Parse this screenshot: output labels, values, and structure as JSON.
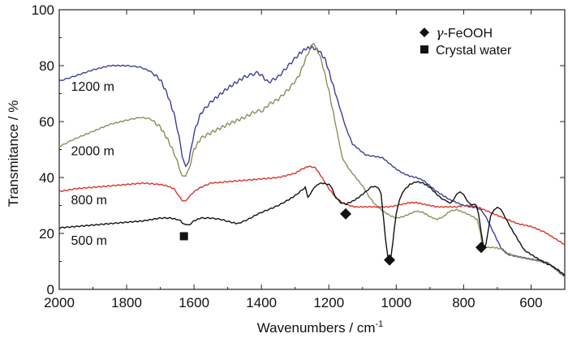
{
  "chart_data": {
    "type": "line",
    "title": "",
    "xlabel": "Wavenumbers / cm",
    "xlabel_superscript": "-1",
    "ylabel": "Transmitance / %",
    "xlim": [
      2000,
      500
    ],
    "ylim": [
      0,
      100
    ],
    "x_reversed": true,
    "x_ticks": [
      2000,
      1800,
      1600,
      1400,
      1200,
      1000,
      800,
      600
    ],
    "y_ticks": [
      0,
      20,
      40,
      60,
      80,
      100
    ],
    "grid": false,
    "legend_position": "top-right",
    "legend": [
      {
        "label": "γ-FeOOH",
        "marker": "diamond"
      },
      {
        "label": "Crystal water",
        "marker": "square"
      }
    ],
    "series": [
      {
        "name": "1200 m",
        "color": "#3b3f9a",
        "x": [
          2000,
          1960,
          1900,
          1850,
          1800,
          1760,
          1730,
          1700,
          1680,
          1660,
          1645,
          1635,
          1625,
          1615,
          1600,
          1580,
          1550,
          1500,
          1450,
          1410,
          1395,
          1380,
          1350,
          1320,
          1290,
          1270,
          1250,
          1230,
          1210,
          1190,
          1170,
          1150,
          1130,
          1110,
          1090,
          1060,
          1040,
          1020,
          1000,
          980,
          960,
          940,
          920,
          900,
          880,
          860,
          840,
          820,
          800,
          780,
          760,
          745,
          730,
          710,
          690,
          670,
          650,
          630,
          610,
          590,
          570,
          560,
          550,
          540,
          525,
          510,
          500
        ],
        "y": [
          74.5,
          76,
          78.5,
          80,
          80,
          79.5,
          78,
          75,
          70,
          63,
          55,
          47,
          44.5,
          46,
          56,
          63,
          67,
          72,
          76,
          77.5,
          76,
          74,
          76,
          80,
          84,
          86,
          86.5,
          85.5,
          82,
          74,
          66,
          58,
          52,
          50,
          48,
          47.5,
          47,
          45,
          43,
          41.5,
          40.5,
          40,
          39,
          37,
          35,
          33.5,
          32,
          31,
          30,
          29.5,
          29.2,
          28,
          25,
          20,
          15,
          12.5,
          12,
          11.5,
          11,
          10.6,
          10.2,
          9.8,
          9.5,
          8.5,
          7,
          5.5,
          4.5
        ]
      },
      {
        "name": "2000 m",
        "color": "#8c8e58",
        "x": [
          2000,
          1960,
          1900,
          1850,
          1800,
          1760,
          1730,
          1700,
          1680,
          1660,
          1645,
          1635,
          1625,
          1615,
          1600,
          1580,
          1550,
          1500,
          1450,
          1420,
          1395,
          1380,
          1350,
          1320,
          1290,
          1270,
          1255,
          1245,
          1235,
          1220,
          1200,
          1180,
          1160,
          1140,
          1120,
          1100,
          1080,
          1060,
          1040,
          1020,
          1000,
          980,
          960,
          940,
          920,
          900,
          880,
          860,
          840,
          820,
          800,
          780,
          760,
          750,
          745,
          740,
          730,
          710,
          690,
          670,
          650,
          630,
          610,
          590,
          570,
          560,
          550,
          540,
          525,
          510,
          500
        ],
        "y": [
          51,
          53.5,
          56.5,
          59,
          60.5,
          61.5,
          61,
          58,
          54,
          49,
          44,
          41,
          40,
          43,
          50,
          54,
          56,
          59,
          61.5,
          63.5,
          64,
          66,
          68,
          71.5,
          76,
          82,
          86.5,
          87.5,
          86,
          81,
          71,
          59,
          47,
          43,
          40,
          37,
          33,
          30,
          28,
          26.5,
          25.5,
          26,
          27,
          28,
          27.5,
          26,
          25,
          26,
          28,
          28.5,
          27.5,
          26.5,
          25,
          20,
          16,
          15,
          15,
          15,
          14.5,
          13,
          12,
          11.5,
          11,
          10.5,
          10,
          9.8,
          9.5,
          8.5,
          7,
          5.5,
          4.5
        ]
      },
      {
        "name": "800 m",
        "color": "#d9342b",
        "x": [
          2000,
          1950,
          1900,
          1850,
          1800,
          1750,
          1700,
          1680,
          1660,
          1645,
          1635,
          1625,
          1615,
          1600,
          1580,
          1550,
          1500,
          1450,
          1400,
          1350,
          1300,
          1280,
          1260,
          1240,
          1220,
          1200,
          1180,
          1160,
          1140,
          1120,
          1100,
          1080,
          1060,
          1040,
          1020,
          1000,
          980,
          960,
          940,
          920,
          900,
          880,
          860,
          840,
          820,
          800,
          780,
          760,
          740,
          720,
          700,
          680,
          660,
          640,
          620,
          600,
          580,
          560,
          540,
          520,
          500
        ],
        "y": [
          35,
          36,
          36.5,
          37,
          37.5,
          38,
          37.5,
          37,
          36,
          33.5,
          31.5,
          31.8,
          33,
          35,
          36.5,
          38,
          38.5,
          39,
          39.5,
          40,
          41.5,
          43,
          44,
          43.5,
          40,
          36,
          33,
          31,
          30,
          29.5,
          29.5,
          29.5,
          29.5,
          29.5,
          29.5,
          30,
          30.5,
          31,
          31,
          30.5,
          30,
          29.5,
          29.5,
          29.5,
          29.5,
          30,
          30,
          29.5,
          28.5,
          27.5,
          26.5,
          25.5,
          24.5,
          23.5,
          23,
          22.5,
          21.5,
          20.5,
          19,
          17.5,
          16
        ]
      },
      {
        "name": "500 m",
        "color": "#111111",
        "x": [
          2000,
          1950,
          1900,
          1850,
          1800,
          1750,
          1700,
          1670,
          1650,
          1640,
          1632,
          1625,
          1615,
          1600,
          1580,
          1550,
          1520,
          1490,
          1470,
          1440,
          1410,
          1380,
          1350,
          1320,
          1300,
          1285,
          1270,
          1262,
          1255,
          1245,
          1235,
          1220,
          1200,
          1190,
          1180,
          1165,
          1150,
          1130,
          1110,
          1090,
          1075,
          1062,
          1052,
          1045,
          1040,
          1035,
          1030,
          1025,
          1020,
          1015,
          1010,
          1005,
          1000,
          990,
          980,
          960,
          940,
          920,
          900,
          880,
          860,
          850,
          840,
          830,
          820,
          810,
          800,
          790,
          780,
          770,
          762,
          756,
          750,
          746,
          742,
          738,
          734,
          730,
          720,
          710,
          700,
          690,
          680,
          660,
          640,
          620,
          600,
          580,
          560,
          540,
          520,
          500
        ],
        "y": [
          22,
          22.5,
          23,
          23.5,
          24,
          24.5,
          25.5,
          25.5,
          25,
          24.5,
          23.5,
          23,
          23,
          24.5,
          25.5,
          25.5,
          25,
          24,
          23.5,
          25,
          27,
          28.5,
          30,
          32,
          33.5,
          35,
          36.5,
          33,
          34,
          36,
          37.5,
          38,
          37.5,
          36,
          33,
          31,
          30.5,
          31.5,
          33,
          35,
          36.5,
          37,
          36,
          34,
          28,
          22,
          16,
          12,
          10.5,
          12,
          17,
          22.5,
          27,
          32,
          35,
          37.5,
          38.5,
          38,
          36.5,
          34,
          32,
          31.5,
          31,
          32,
          34,
          35,
          34,
          31.5,
          30.5,
          30.5,
          30,
          27,
          22,
          19,
          16,
          15,
          16,
          19,
          26,
          28.5,
          29.5,
          28.5,
          26.5,
          22,
          18,
          14,
          12.5,
          11,
          9.5,
          8.5,
          7,
          5
        ]
      }
    ],
    "series_labels": [
      "1200 m",
      "2000 m",
      "800 m",
      "500 m"
    ],
    "annotations": [
      {
        "marker": "square",
        "x": 1630,
        "y": 19,
        "meaning": "Crystal water"
      },
      {
        "marker": "diamond",
        "x": 1150,
        "y": 27,
        "meaning": "γ-FeOOH"
      },
      {
        "marker": "diamond",
        "x": 1020,
        "y": 10.5,
        "meaning": "γ-FeOOH"
      },
      {
        "marker": "diamond",
        "x": 748,
        "y": 15,
        "meaning": "γ-FeOOH"
      }
    ],
    "series_label_positions": [
      {
        "series": "1200 m",
        "x": 1965,
        "y": 71
      },
      {
        "series": "2000 m",
        "x": 1965,
        "y": 48
      },
      {
        "series": "800 m",
        "x": 1965,
        "y": 30.5
      },
      {
        "series": "500 m",
        "x": 1965,
        "y": 16
      }
    ]
  }
}
